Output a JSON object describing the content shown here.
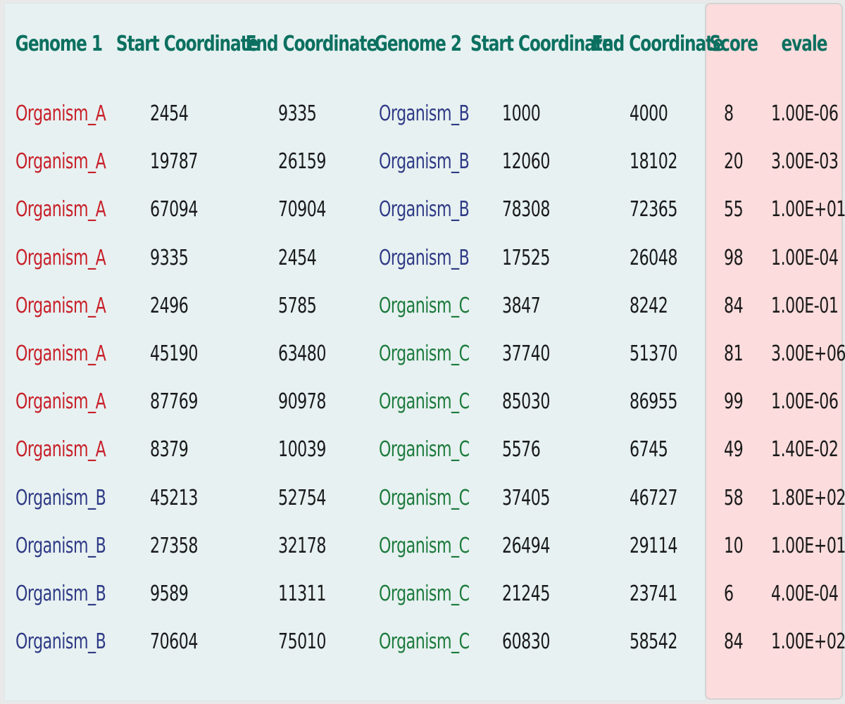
{
  "headers": {
    "genome1": "Genome 1",
    "start1": "Start Coordinate",
    "end1": "End Coordinate",
    "genome2": "Genome 2",
    "start2": "Start Coordinate",
    "end2": "End Coordinate",
    "score": "Score",
    "evalue": "evale"
  },
  "colors": {
    "header": "#0c7060",
    "organism_a": "#c8202a",
    "organism_b": "#2f3a86",
    "organism_c": "#1c7a3c",
    "main_panel_bg": "#e7f1f1",
    "score_panel_bg": "#fcdcdd"
  },
  "rows": [
    {
      "g1": "Organism_A",
      "s1": "2454",
      "e1": "9335",
      "g2": "Organism_B",
      "s2": "1000",
      "e2": "4000",
      "score": "8",
      "evalue": "1.00E-06"
    },
    {
      "g1": "Organism_A",
      "s1": "19787",
      "e1": "26159",
      "g2": "Organism_B",
      "s2": "12060",
      "e2": "18102",
      "score": "20",
      "evalue": "3.00E-03"
    },
    {
      "g1": "Organism_A",
      "s1": "67094",
      "e1": "70904",
      "g2": "Organism_B",
      "s2": "78308",
      "e2": "72365",
      "score": "55",
      "evalue": "1.00E+01"
    },
    {
      "g1": "Organism_A",
      "s1": "9335",
      "e1": "2454",
      "g2": "Organism_B",
      "s2": "17525",
      "e2": "26048",
      "score": "98",
      "evalue": "1.00E-04"
    },
    {
      "g1": "Organism_A",
      "s1": "2496",
      "e1": "5785",
      "g2": "Organism_C",
      "s2": "3847",
      "e2": "8242",
      "score": "84",
      "evalue": "1.00E-01"
    },
    {
      "g1": "Organism_A",
      "s1": "45190",
      "e1": "63480",
      "g2": "Organism_C",
      "s2": "37740",
      "e2": "51370",
      "score": "81",
      "evalue": "3.00E+06"
    },
    {
      "g1": "Organism_A",
      "s1": "87769",
      "e1": "90978",
      "g2": "Organism_C",
      "s2": "85030",
      "e2": "86955",
      "score": "99",
      "evalue": "1.00E-06"
    },
    {
      "g1": "Organism_A",
      "s1": "8379",
      "e1": "10039",
      "g2": "Organism_C",
      "s2": "5576",
      "e2": "6745",
      "score": "49",
      "evalue": "1.40E-02"
    },
    {
      "g1": "Organism_B",
      "s1": "45213",
      "e1": "52754",
      "g2": "Organism_C",
      "s2": "37405",
      "e2": "46727",
      "score": "58",
      "evalue": "1.80E+02"
    },
    {
      "g1": "Organism_B",
      "s1": "27358",
      "e1": "32178",
      "g2": "Organism_C",
      "s2": "26494",
      "e2": "29114",
      "score": "10",
      "evalue": "1.00E+01"
    },
    {
      "g1": "Organism_B",
      "s1": "9589",
      "e1": "11311",
      "g2": "Organism_C",
      "s2": "21245",
      "e2": "23741",
      "score": "6",
      "evalue": "4.00E-04"
    },
    {
      "g1": "Organism_B",
      "s1": "70604",
      "e1": "75010",
      "g2": "Organism_C",
      "s2": "60830",
      "e2": "58542",
      "score": "84",
      "evalue": "1.00E+02"
    }
  ]
}
